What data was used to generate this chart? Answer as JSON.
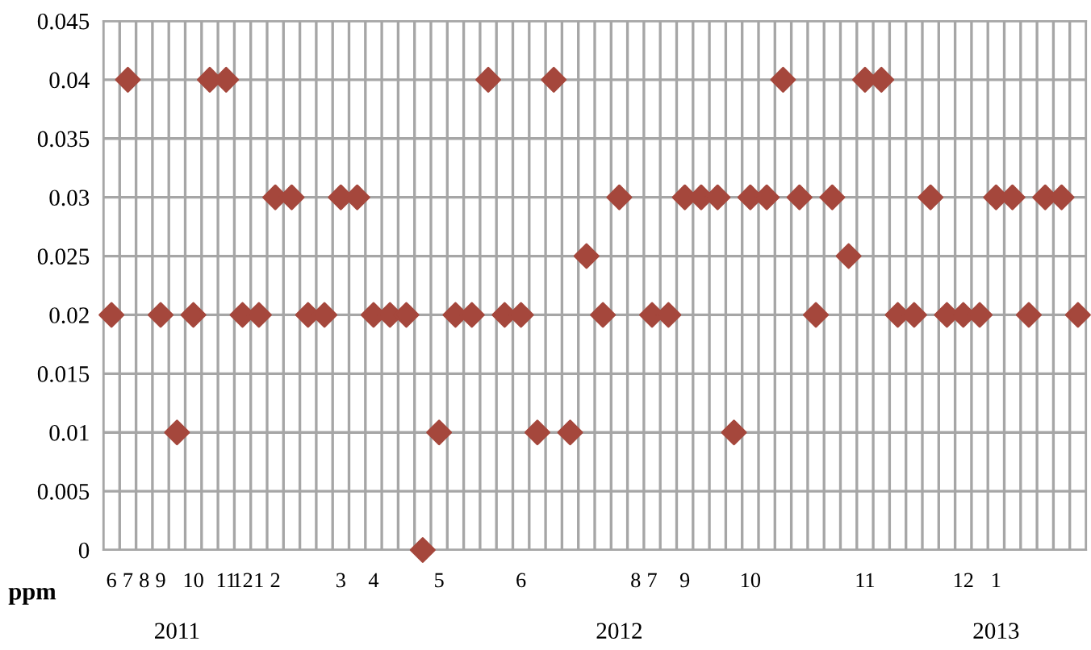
{
  "chart_data": {
    "type": "scatter",
    "ylabel": "ppm",
    "categories": [
      "6",
      "7",
      "8",
      "9",
      null,
      "10",
      null,
      "11",
      "12",
      "1",
      "2",
      null,
      null,
      null,
      "3",
      null,
      "4",
      null,
      null,
      null,
      "5",
      null,
      null,
      null,
      null,
      "6",
      null,
      null,
      null,
      null,
      null,
      null,
      "8",
      "7",
      null,
      "9",
      null,
      null,
      null,
      "10",
      null,
      null,
      null,
      null,
      null,
      null,
      "11",
      null,
      null,
      null,
      null,
      null,
      "12",
      null,
      "1",
      null,
      null,
      null,
      null,
      null
    ],
    "series": [
      {
        "color": "#a5473c",
        "values": [
          0.02,
          0.04,
          null,
          0.02,
          0.01,
          0.02,
          0.04,
          0.04,
          0.02,
          0.02,
          0.03,
          0.03,
          0.02,
          0.02,
          0.03,
          0.03,
          0.02,
          0.02,
          0.02,
          0,
          0.01,
          0.02,
          0.02,
          0.04,
          0.02,
          0.02,
          0.01,
          0.04,
          0.01,
          0.025,
          0.02,
          0.03,
          null,
          0.02,
          0.02,
          0.03,
          0.03,
          0.03,
          0.01,
          0.03,
          0.03,
          0.04,
          0.03,
          0.02,
          0.03,
          0.025,
          0.04,
          0.04,
          0.02,
          0.02,
          0.03,
          0.02,
          0.02,
          0.02,
          0.03,
          0.03,
          0.02,
          0.03,
          0.03,
          0.02
        ]
      }
    ],
    "ylim": [
      0,
      0.045
    ],
    "yticks": [
      0,
      0.005,
      0.01,
      0.015,
      0.02,
      0.025,
      0.03,
      0.035,
      0.04,
      0.045
    ],
    "grid": true,
    "marker": "diamond",
    "legend": false,
    "annotations": [
      "2011",
      "2012",
      "2013"
    ]
  }
}
